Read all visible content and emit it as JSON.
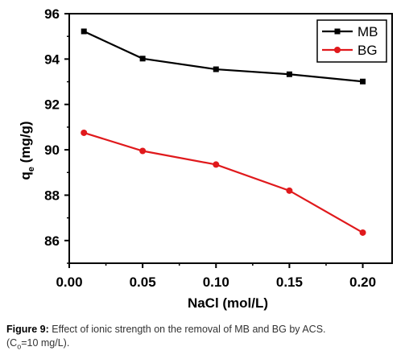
{
  "chart_data": {
    "type": "line",
    "xlabel": "NaCl (mol/L)",
    "ylabel": "q",
    "ylabel_subscript": "e",
    "ylabel_unit": " (mg/g)",
    "xlim": [
      0.0,
      0.22
    ],
    "ylim": [
      85,
      96
    ],
    "x_ticks": [
      0.0,
      0.05,
      0.1,
      0.15,
      0.2
    ],
    "x_tick_labels": [
      "0.00",
      "0.05",
      "0.10",
      "0.15",
      "0.20"
    ],
    "y_ticks": [
      86,
      88,
      90,
      92,
      94,
      96
    ],
    "y_tick_labels": [
      "86",
      "88",
      "90",
      "92",
      "94",
      "96"
    ],
    "legend_position": "top-right",
    "grid": false,
    "series": [
      {
        "name": "MB",
        "color": "#000000",
        "marker": "square",
        "x": [
          0.01,
          0.05,
          0.1,
          0.15,
          0.2
        ],
        "y": [
          95.22,
          94.02,
          93.55,
          93.33,
          93.01
        ]
      },
      {
        "name": "BG",
        "color": "#e0191c",
        "marker": "circle",
        "x": [
          0.01,
          0.05,
          0.1,
          0.15,
          0.2
        ],
        "y": [
          90.75,
          89.95,
          89.35,
          88.2,
          86.35
        ]
      }
    ]
  },
  "caption": {
    "label": "Figure 9:",
    "text": "Effect of ionic strength on the removal of MB and BG by ACS.",
    "line2_prefix": "(C",
    "line2_subscript": "o",
    "line2_suffix": "=10 mg/L)."
  }
}
